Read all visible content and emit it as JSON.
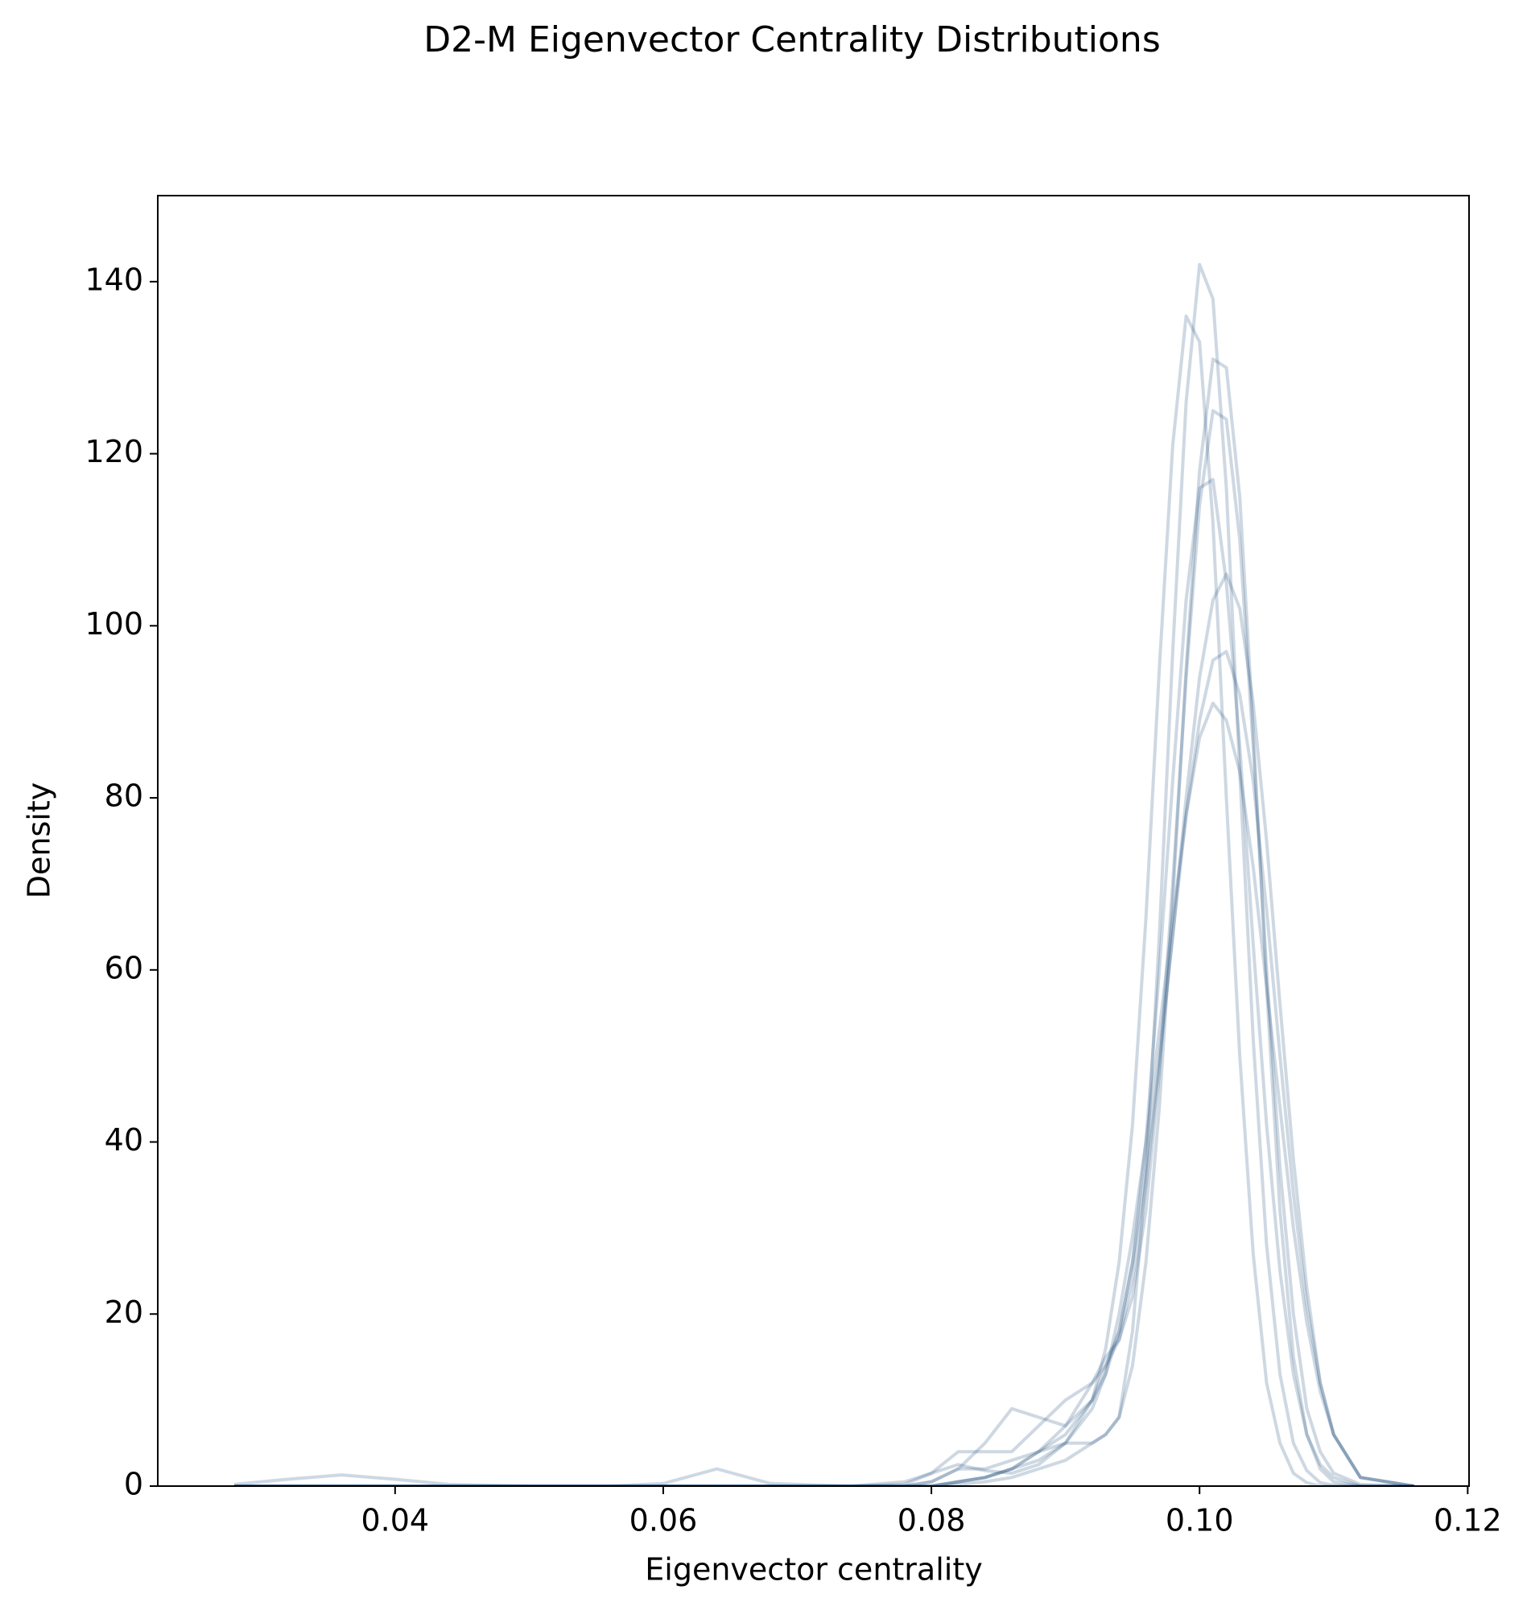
{
  "chart_data": {
    "type": "line",
    "title": "D2-M Eigenvector Centrality Distributions",
    "xlabel": "Eigenvector centrality",
    "ylabel": "Density",
    "xlim": [
      0.0223,
      0.1201
    ],
    "ylim": [
      0,
      150
    ],
    "xticks": [
      0.04,
      0.06,
      0.08,
      {
        "value": 0.1,
        "label": "0.10"
      },
      0.12
    ],
    "yticks": [
      0,
      20,
      40,
      60,
      80,
      100,
      120,
      140
    ],
    "grid": false,
    "line_alpha": 0.22,
    "x": [
      0.028,
      0.032,
      0.036,
      0.04,
      0.044,
      0.05,
      0.056,
      0.06,
      0.064,
      0.068,
      0.074,
      0.078,
      0.08,
      0.082,
      0.084,
      0.086,
      0.088,
      0.09,
      0.092,
      0.093,
      0.094,
      0.095,
      0.096,
      0.097,
      0.098,
      0.099,
      0.1,
      0.101,
      0.102,
      0.103,
      0.104,
      0.105,
      0.106,
      0.107,
      0.108,
      0.109,
      0.11,
      0.112,
      0.116
    ],
    "series": [
      {
        "color": "#1f4e79",
        "values": [
          0,
          0,
          0,
          0,
          0,
          0,
          0,
          0,
          0,
          0,
          0,
          0,
          0,
          0.5,
          1,
          2,
          4,
          5,
          5,
          6,
          8,
          18,
          36,
          64,
          97,
          126,
          142,
          138,
          116,
          83,
          52,
          28,
          13,
          5,
          1.8,
          0.4,
          0.1,
          0,
          0
        ]
      },
      {
        "color": "#1f4e79",
        "values": [
          0.2,
          0.8,
          1.3,
          0.8,
          0.2,
          0,
          0,
          0,
          0,
          0,
          0,
          0,
          0,
          0.5,
          1,
          2,
          3,
          5,
          9,
          13,
          20,
          29,
          40,
          53,
          66,
          78,
          87,
          91,
          89,
          83,
          72,
          58,
          44,
          30,
          19,
          11,
          6,
          1,
          0
        ]
      },
      {
        "color": "#1f4e79",
        "values": [
          0,
          0,
          0,
          0,
          0,
          0,
          0,
          0.3,
          2,
          0.3,
          0,
          0,
          0.5,
          2,
          2,
          3,
          4,
          6,
          10,
          16,
          26,
          42,
          66,
          95,
          121,
          136,
          133,
          112,
          80,
          50,
          27,
          12,
          5,
          1.5,
          0.4,
          0,
          0,
          0,
          0
        ]
      },
      {
        "color": "#1f4e79",
        "values": [
          0,
          0,
          0,
          0,
          0,
          0,
          0,
          0,
          0,
          0,
          0,
          0.5,
          1.5,
          2.5,
          1.8,
          1.5,
          2.5,
          5,
          10,
          14,
          18,
          26,
          40,
          60,
          82,
          103,
          116,
          117,
          105,
          86,
          63,
          42,
          25,
          13,
          6,
          2.5,
          1,
          0,
          0
        ]
      },
      {
        "color": "#1f4e79",
        "values": [
          0,
          0,
          0,
          0,
          0,
          0,
          0,
          0,
          0,
          0,
          0,
          0,
          0.5,
          2,
          5,
          9,
          8,
          7,
          10,
          13,
          18,
          26,
          37,
          50,
          64,
          78,
          89,
          96,
          97,
          92,
          82,
          67,
          50,
          34,
          21,
          12,
          6,
          1,
          0
        ]
      },
      {
        "color": "#1f4e79",
        "values": [
          0,
          0,
          0,
          0,
          0,
          0,
          0,
          0,
          0,
          0,
          0,
          0,
          0,
          0.5,
          1,
          2,
          4,
          7,
          12,
          15,
          17,
          22,
          32,
          48,
          70,
          94,
          114,
          125,
          124,
          110,
          86,
          60,
          37,
          20,
          9,
          4,
          1.5,
          0.2,
          0
        ]
      },
      {
        "color": "#1f4e79",
        "values": [
          0,
          0,
          0,
          0,
          0,
          0,
          0,
          0,
          0,
          0,
          0,
          0.2,
          1.5,
          4,
          4,
          4,
          7,
          10,
          12,
          14,
          17,
          24,
          35,
          49,
          64,
          80,
          94,
          103,
          106,
          102,
          91,
          75,
          56,
          38,
          23,
          12,
          6,
          1,
          0
        ]
      },
      {
        "color": "#1f4e79",
        "values": [
          0,
          0,
          0,
          0,
          0,
          0,
          0,
          0,
          0,
          0,
          0,
          0,
          0,
          0.2,
          0.5,
          1,
          2,
          3,
          5,
          6,
          8,
          14,
          26,
          44,
          68,
          95,
          118,
          131,
          130,
          115,
          88,
          58,
          32,
          15,
          6,
          2,
          0.5,
          0,
          0
        ]
      }
    ]
  }
}
